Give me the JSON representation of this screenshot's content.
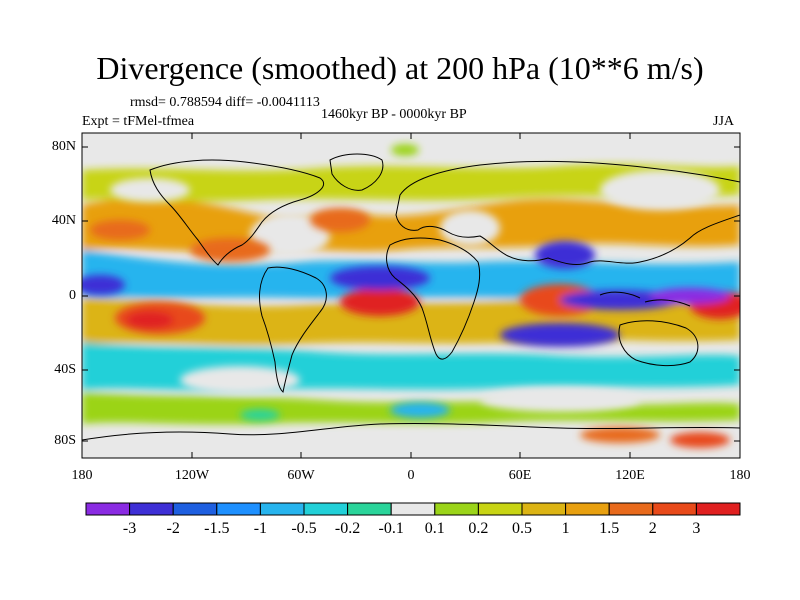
{
  "title": "Divergence (smoothed) at 200 hPa (10**6 m/s)",
  "stats": "rmsd= 0.788594 diff= -0.0041113",
  "experiment": "Expt = tFMel-tfmea",
  "period": "1460kyr BP - 0000kyr BP",
  "season": "JJA",
  "axes": {
    "lat_labels": [
      "80N",
      "40N",
      "0",
      "40S",
      "80S"
    ],
    "lon_labels": [
      "180",
      "120W",
      "60W",
      "0",
      "60E",
      "120E",
      "180"
    ]
  },
  "colorbar": {
    "colors": [
      "#8a2be2",
      "#3e2fd6",
      "#1e5fe0",
      "#1e90ff",
      "#27b4ee",
      "#22d0d8",
      "#2ad49a",
      "#e8e8e8",
      "#9bd419",
      "#c8d414",
      "#dcb414",
      "#e8a010",
      "#e86a1c",
      "#e84a1a",
      "#e02020"
    ],
    "labels": [
      "-3",
      "-2",
      "-1.5",
      "-1",
      "-0.5",
      "-0.2",
      "-0.1",
      "0.1",
      "0.2",
      "0.5",
      "1",
      "1.5",
      "2",
      "3"
    ]
  },
  "colors": {
    "background_field": "#e8e8e8",
    "neg_strong": "#3e2fd6",
    "neg_mid": "#1e90ff",
    "neg_weak": "#22d0d8",
    "pos_weak": "#9bd419",
    "pos_mid": "#e8a010",
    "pos_strong": "#e02020"
  }
}
